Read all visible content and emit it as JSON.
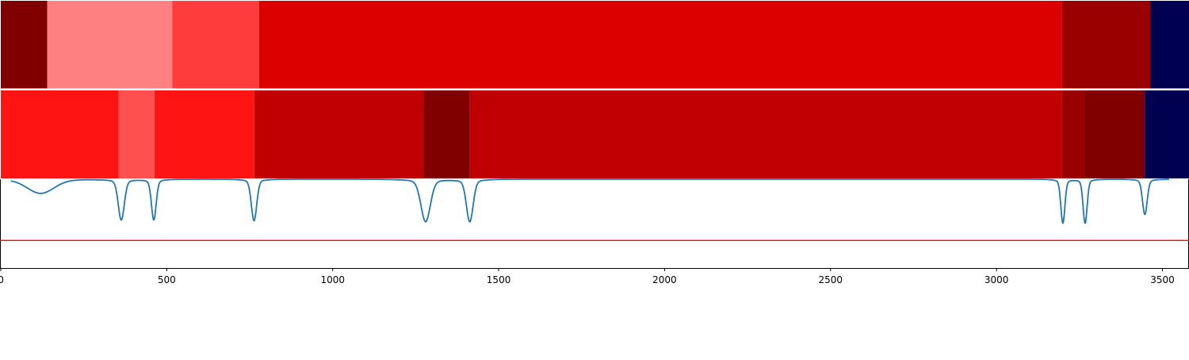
{
  "chart_data": {
    "type": "heatmap",
    "title": "",
    "xlabel": "",
    "ylabel": "",
    "xlim": [
      0,
      3580
    ],
    "x_ticks": [
      0,
      500,
      1000,
      1500,
      2000,
      2500,
      3000,
      3500
    ],
    "x_tick_labels": [
      "0",
      "500",
      "1000",
      "1500",
      "2000",
      "2500",
      "3000",
      "3500"
    ],
    "grid": false,
    "rows": [
      {
        "name": "",
        "segments": [
          {
            "start": 0,
            "end": 140,
            "color": "#800000"
          },
          {
            "start": 140,
            "end": 517,
            "color": "#ff8080"
          },
          {
            "start": 517,
            "end": 778,
            "color": "#ff3c3c"
          },
          {
            "start": 778,
            "end": 3197,
            "color": "#dc0000"
          },
          {
            "start": 3197,
            "end": 3463,
            "color": "#9a0000"
          },
          {
            "start": 3463,
            "end": 3580,
            "color": "#000050"
          }
        ]
      },
      {
        "name": "",
        "segments": [
          {
            "start": 0,
            "end": 355,
            "color": "#ff1414"
          },
          {
            "start": 355,
            "end": 463,
            "color": "#ff5050"
          },
          {
            "start": 463,
            "end": 764,
            "color": "#ff1414"
          },
          {
            "start": 764,
            "end": 1274,
            "color": "#c00000"
          },
          {
            "start": 1274,
            "end": 1413,
            "color": "#800000"
          },
          {
            "start": 1413,
            "end": 3197,
            "color": "#c00000"
          },
          {
            "start": 3197,
            "end": 3266,
            "color": "#9a0000"
          },
          {
            "start": 3266,
            "end": 3447,
            "color": "#800000"
          },
          {
            "start": 3447,
            "end": 3580,
            "color": "#000050"
          }
        ]
      }
    ],
    "signal": {
      "color": "#1f77b4",
      "ylim": [
        0,
        1
      ],
      "baseline": 1.0,
      "dips": [
        {
          "center": 120,
          "depth": 0.16,
          "width": 40
        },
        {
          "center": 363,
          "depth": 0.46,
          "width": 9
        },
        {
          "center": 461,
          "depth": 0.46,
          "width": 7
        },
        {
          "center": 763,
          "depth": 0.47,
          "width": 8
        },
        {
          "center": 1280,
          "depth": 0.48,
          "width": 14
        },
        {
          "center": 1413,
          "depth": 0.48,
          "width": 10
        },
        {
          "center": 3200,
          "depth": 0.5,
          "width": 6
        },
        {
          "center": 3267,
          "depth": 0.5,
          "width": 6
        },
        {
          "center": 3447,
          "depth": 0.4,
          "width": 7
        }
      ],
      "threshold": {
        "value": 0.31,
        "color": "#e41a1c"
      }
    }
  }
}
